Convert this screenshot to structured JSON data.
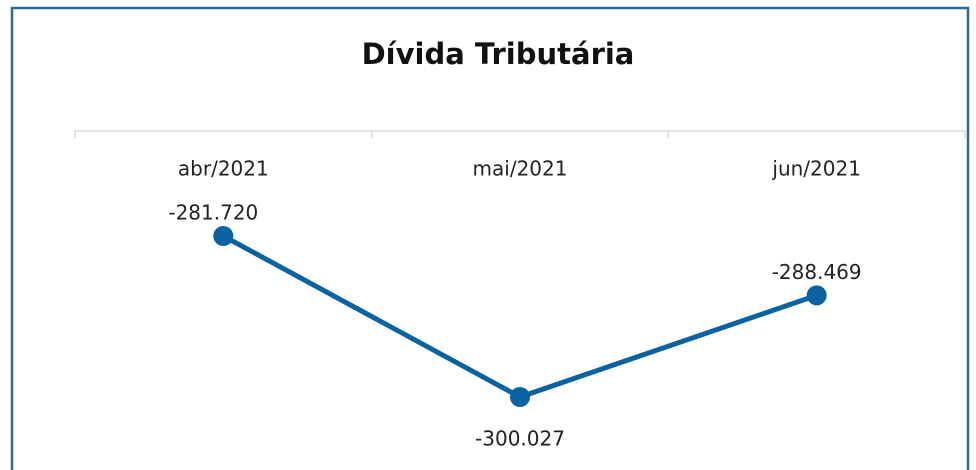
{
  "chart_data": {
    "type": "line",
    "title": "Dívida Tributária",
    "categories": [
      "abr/2021",
      "mai/2021",
      "jun/2021"
    ],
    "series": [
      {
        "name": "Dívida Tributária",
        "color": "#0b62a0",
        "values": [
          -281720,
          -300027,
          -288469
        ],
        "value_labels": [
          "-281.720",
          "-300.027",
          "-288.469"
        ]
      }
    ]
  }
}
